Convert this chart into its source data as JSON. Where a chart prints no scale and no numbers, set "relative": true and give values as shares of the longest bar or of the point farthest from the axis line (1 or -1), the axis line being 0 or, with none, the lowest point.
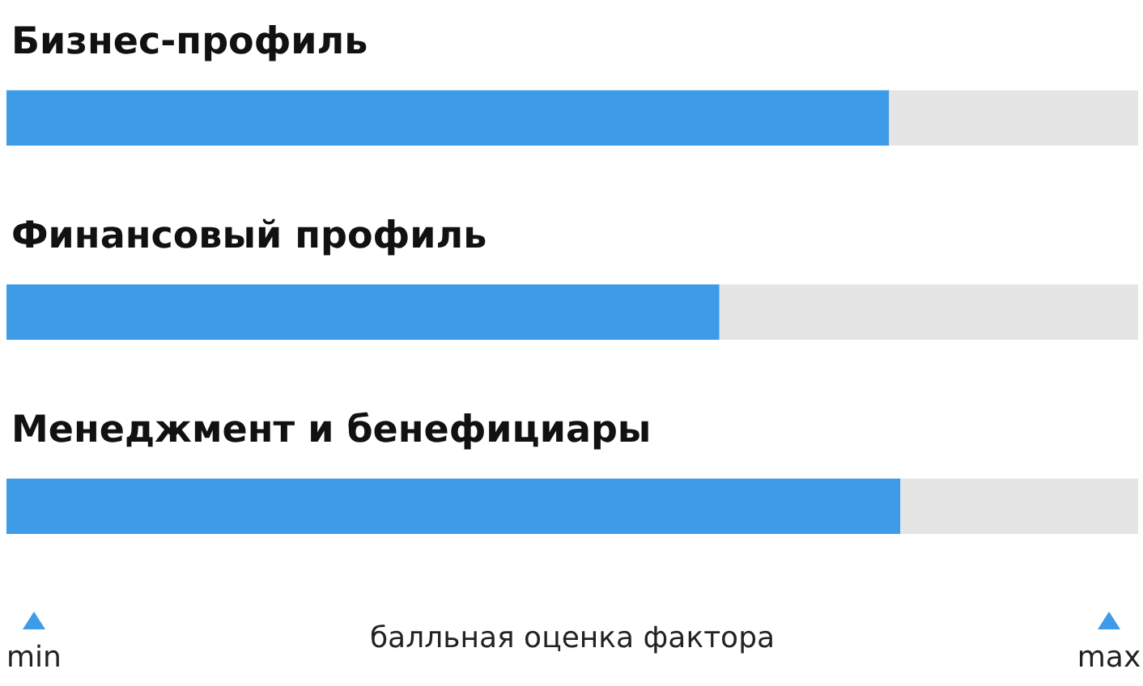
{
  "chart_data": {
    "type": "bar",
    "orientation": "horizontal",
    "stacked": true,
    "relative": true,
    "categories": [
      "Бизнес-профиль",
      "Финансовый профиль",
      "Менеджмент и бенефициары"
    ],
    "series": [
      {
        "color": "#3d9be8",
        "values": [
          0.78,
          0.63,
          0.79
        ]
      },
      {
        "color": "#e5e5e5",
        "values": [
          0.22,
          0.37,
          0.21
        ]
      }
    ],
    "xlabel": "балльная оценка фактора",
    "annotations": [
      "min",
      "max"
    ]
  }
}
